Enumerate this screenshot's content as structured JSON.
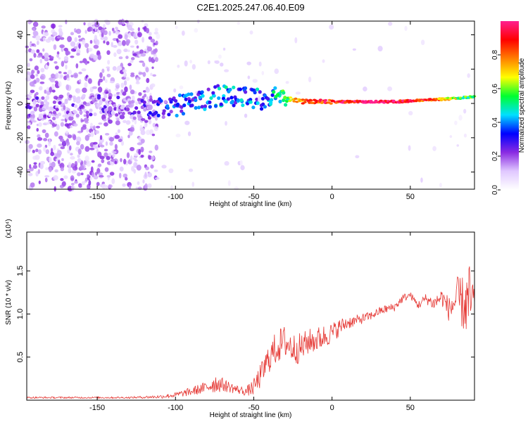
{
  "title": "C2E1.2025.247.06.40.E09",
  "chart_data": [
    {
      "type": "heatmap",
      "name": "spectrogram",
      "xlabel": "Height of straight line (km)",
      "ylabel": "Frequency (Hz)",
      "xlim": [
        -195,
        91
      ],
      "ylim": [
        -50,
        48
      ],
      "xticks": [
        -150,
        -100,
        -50,
        0,
        50
      ],
      "yticks": [
        -40,
        -20,
        0,
        20,
        40
      ],
      "colorbar": {
        "label": "Normalized spectral amplitude",
        "range": [
          0,
          1
        ],
        "ticks": [
          0.0,
          0.2,
          0.4,
          0.6,
          0.8
        ],
        "tick_labels": [
          "0.0",
          "0.2",
          "0.4",
          "0.6",
          "0.8"
        ],
        "colormap": [
          "#ffffff",
          "#e0c8ff",
          "#8a2be2",
          "#0000ff",
          "#00e0ff",
          "#00ff30",
          "#ffff00",
          "#ff8000",
          "#ff0000",
          "#ff2090"
        ]
      },
      "tone_track": {
        "description_free": true,
        "x": [
          -195,
          -180,
          -160,
          -140,
          -120,
          -110,
          -100,
          -90,
          -80,
          -70,
          -60,
          -50,
          -40,
          -35,
          -30,
          -20,
          0,
          20,
          40,
          60,
          80,
          90
        ],
        "freq": [
          -2,
          -3,
          -1,
          -1,
          -4,
          -3,
          -1,
          0,
          3,
          5,
          4,
          2,
          3,
          6,
          3,
          1,
          1,
          1,
          1,
          2,
          3,
          4
        ],
        "amplitude": [
          0.15,
          0.15,
          0.15,
          0.15,
          0.2,
          0.25,
          0.3,
          0.35,
          0.35,
          0.4,
          0.35,
          0.35,
          0.4,
          0.45,
          0.55,
          0.8,
          0.9,
          0.95,
          0.95,
          0.85,
          0.6,
          0.55
        ]
      }
    },
    {
      "type": "line",
      "name": "snr",
      "xlabel": "Height of straight line (km)",
      "ylabel": "SNR (10 * v/v)",
      "multiplier_label": "(x10⁴)",
      "xlim": [
        -195,
        91
      ],
      "ylim": [
        0,
        1.95
      ],
      "xticks": [
        -150,
        -100,
        -50,
        0,
        50
      ],
      "yticks": [
        0.5,
        1.0,
        1.5
      ],
      "ytick_labels": [
        "0.5",
        "1.0",
        "1.5"
      ],
      "color": "#e53935",
      "envelope": {
        "x": [
          -195,
          -170,
          -150,
          -130,
          -110,
          -100,
          -90,
          -80,
          -75,
          -70,
          -60,
          -55,
          -50,
          -45,
          -40,
          -35,
          -30,
          -25,
          -20,
          -15,
          -10,
          -5,
          0,
          5,
          10,
          15,
          20,
          25,
          30,
          35,
          40,
          45,
          50,
          55,
          60,
          65,
          70,
          75,
          80,
          85,
          88,
          91
        ],
        "mean": [
          0.03,
          0.03,
          0.03,
          0.03,
          0.04,
          0.06,
          0.1,
          0.15,
          0.2,
          0.18,
          0.12,
          0.1,
          0.15,
          0.3,
          0.5,
          0.62,
          0.68,
          0.6,
          0.6,
          0.68,
          0.7,
          0.74,
          0.78,
          0.85,
          0.9,
          0.92,
          0.95,
          0.98,
          1.03,
          1.06,
          1.08,
          1.18,
          1.22,
          1.1,
          1.18,
          1.12,
          1.2,
          1.05,
          1.18,
          1.1,
          1.15,
          1.1
        ],
        "noise": [
          0.01,
          0.01,
          0.01,
          0.01,
          0.02,
          0.03,
          0.05,
          0.07,
          0.12,
          0.08,
          0.05,
          0.05,
          0.1,
          0.15,
          0.18,
          0.2,
          0.2,
          0.18,
          0.18,
          0.15,
          0.15,
          0.14,
          0.12,
          0.1,
          0.08,
          0.06,
          0.06,
          0.05,
          0.05,
          0.05,
          0.05,
          0.05,
          0.04,
          0.05,
          0.06,
          0.08,
          0.1,
          0.15,
          0.25,
          0.35,
          0.45,
          0.3
        ]
      }
    }
  ]
}
